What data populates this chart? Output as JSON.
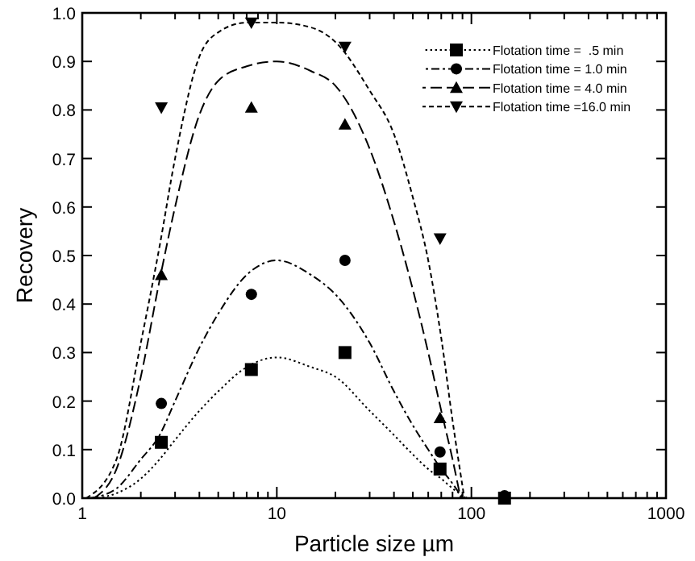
{
  "chart_data": {
    "type": "scatter",
    "xlabel": "Particle size µm",
    "ylabel": "Recovery",
    "log": "x",
    "xlim": [
      1,
      1000
    ],
    "ylim": [
      0,
      1
    ],
    "xticks": [
      1,
      {
        "value": 2,
        "label": null
      },
      {
        "value": 3,
        "label": null
      },
      {
        "value": 4,
        "label": null
      },
      {
        "value": 5,
        "label": null
      },
      {
        "value": 6,
        "label": null
      },
      {
        "value": 7,
        "label": null
      },
      {
        "value": 8,
        "label": null
      },
      {
        "value": 9,
        "label": null
      },
      10,
      {
        "value": 20,
        "label": null
      },
      {
        "value": 30,
        "label": null
      },
      {
        "value": 40,
        "label": null
      },
      {
        "value": 50,
        "label": null
      },
      {
        "value": 60,
        "label": null
      },
      {
        "value": 70,
        "label": null
      },
      {
        "value": 80,
        "label": null
      },
      {
        "value": 90,
        "label": null
      },
      100,
      {
        "value": 200,
        "label": null
      },
      {
        "value": 300,
        "label": null
      },
      {
        "value": 400,
        "label": null
      },
      {
        "value": 500,
        "label": null
      },
      {
        "value": 600,
        "label": null
      },
      {
        "value": 700,
        "label": null
      },
      {
        "value": 800,
        "label": null
      },
      {
        "value": 900,
        "label": null
      },
      1000
    ],
    "yticks": [
      {
        "value": 0,
        "label": "0.0"
      },
      0.1,
      0.2,
      0.3,
      0.4,
      0.5,
      0.6,
      0.7,
      0.8,
      0.9,
      {
        "value": 1,
        "label": "1.0"
      }
    ],
    "grid": false,
    "legend": "top right",
    "series": [
      {
        "name": "Flotation time =  .5 min",
        "color": "#000000",
        "marker": "square",
        "line_style": "dotted",
        "x": [
          2.55,
          7.4,
          22.4,
          69,
          148
        ],
        "values": [
          0.115,
          0.265,
          0.3,
          0.06,
          0
        ]
      },
      {
        "name": "Flotation time = 1.0 min",
        "color": "#000000",
        "marker": "circle",
        "line_style": "dashdot",
        "x": [
          2.55,
          7.4,
          22.4,
          69,
          148
        ],
        "values": [
          0.195,
          0.42,
          0.49,
          0.095,
          0.005
        ]
      },
      {
        "name": "Flotation time = 4.0 min",
        "color": "#000000",
        "marker": "triangle",
        "line_style": "longdash",
        "x": [
          2.55,
          7.4,
          22.4,
          69
        ],
        "values": [
          0.46,
          0.805,
          0.77,
          0.165
        ]
      },
      {
        "name": "Flotation time =16.0 min",
        "color": "#000000",
        "marker": "triangle-down",
        "line_style": "dashed",
        "x": [
          2.55,
          7.4,
          22.4,
          69
        ],
        "values": [
          0.805,
          0.98,
          0.93,
          0.535
        ]
      },
      {
        "type": "line",
        "color": "#000000",
        "line_style": "dotted",
        "marker": "none",
        "x": [
          1.2,
          1.5,
          2,
          2.5,
          3,
          4,
          5,
          7,
          10,
          15,
          20,
          30,
          40,
          50,
          60,
          70,
          80,
          95
        ],
        "values": [
          0,
          0.01,
          0.04,
          0.08,
          0.12,
          0.18,
          0.22,
          0.27,
          0.29,
          0.27,
          0.25,
          0.18,
          0.13,
          0.09,
          0.06,
          0.04,
          0.02,
          0
        ]
      },
      {
        "type": "line",
        "color": "#000000",
        "line_style": "dashdot",
        "marker": "none",
        "x": [
          1.1,
          1.5,
          2,
          2.5,
          3,
          4,
          5,
          7,
          10,
          15,
          20,
          30,
          40,
          50,
          60,
          70,
          80,
          90
        ],
        "values": [
          0,
          0.02,
          0.08,
          0.13,
          0.2,
          0.31,
          0.38,
          0.46,
          0.49,
          0.46,
          0.42,
          0.32,
          0.22,
          0.15,
          0.1,
          0.06,
          0.03,
          0
        ]
      },
      {
        "type": "line",
        "color": "#000000",
        "line_style": "longdash",
        "marker": "none",
        "x": [
          1.15,
          1.5,
          2,
          2.5,
          3,
          4,
          5,
          7,
          10,
          15,
          20,
          30,
          40,
          50,
          60,
          70,
          80,
          88
        ],
        "values": [
          0,
          0.06,
          0.25,
          0.45,
          0.6,
          0.79,
          0.86,
          0.89,
          0.9,
          0.88,
          0.85,
          0.72,
          0.57,
          0.43,
          0.3,
          0.18,
          0.08,
          0
        ]
      },
      {
        "type": "line",
        "color": "#000000",
        "line_style": "dashed",
        "marker": "none",
        "x": [
          1.05,
          1.5,
          2,
          2.5,
          3,
          4,
          5,
          7,
          10,
          15,
          20,
          30,
          40,
          50,
          60,
          70,
          80,
          92
        ],
        "values": [
          0,
          0.08,
          0.32,
          0.52,
          0.7,
          0.91,
          0.96,
          0.98,
          0.98,
          0.97,
          0.94,
          0.84,
          0.75,
          0.62,
          0.49,
          0.33,
          0.16,
          0
        ]
      }
    ]
  }
}
